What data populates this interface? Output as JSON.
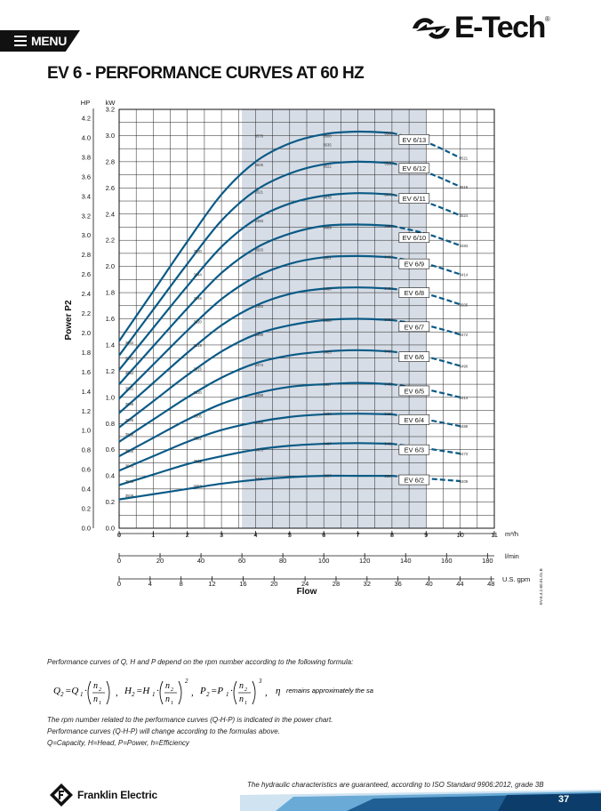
{
  "header": {
    "menu_label": "MENU",
    "brand_name": "E-Tech",
    "brand_reg": "®",
    "title": "EV 6 - PERFORMANCE CURVES AT 60 HZ"
  },
  "chart_data": {
    "type": "line",
    "title": "EV 6 - PERFORMANCE CURVES AT 60 HZ",
    "xlabel": "Flow",
    "ylabel": "Power P2",
    "left_unit_hp": "HP",
    "left_unit_kw": "kW",
    "grid": true,
    "x_axes": [
      {
        "unit": "m³/h",
        "ticks": [
          "0",
          "1",
          "2",
          "3",
          "4",
          "5",
          "6",
          "7",
          "8",
          "9",
          "10",
          "11"
        ],
        "range": [
          0,
          11
        ]
      },
      {
        "unit": "l/min",
        "ticks": [
          "0",
          "20",
          "40",
          "60",
          "80",
          "100",
          "120",
          "140",
          "160",
          "180"
        ],
        "range": [
          0,
          183.33
        ]
      },
      {
        "unit": "U.S. gpm",
        "ticks": [
          "0",
          "4",
          "8",
          "12",
          "16",
          "20",
          "24",
          "28",
          "32",
          "36",
          "40",
          "44",
          "48"
        ],
        "range": [
          0,
          48.43
        ]
      }
    ],
    "y_axes": [
      {
        "unit": "kW",
        "ticks": [
          "0.0",
          "0.2",
          "0.4",
          "0.6",
          "0.8",
          "1.0",
          "1.2",
          "1.4",
          "1.6",
          "1.8",
          "2.0",
          "2.2",
          "2.4",
          "2.6",
          "2.8",
          "3.0",
          "3.2"
        ],
        "range": [
          0,
          3.2
        ]
      },
      {
        "unit": "HP",
        "ticks": [
          "0.0",
          "0.2",
          "0.4",
          "0.6",
          "0.8",
          "1.0",
          "1.2",
          "1.4",
          "1.6",
          "1.8",
          "2.0",
          "2.2",
          "2.4",
          "2.6",
          "2.8",
          "3.0",
          "3.2",
          "3.4",
          "3.6",
          "3.8",
          "4.0",
          "4.2"
        ],
        "range": [
          0,
          4.2913
        ]
      }
    ],
    "shaded_range_m3h": [
      3.6,
      9.0
    ],
    "series": [
      {
        "name": "EV 6/2",
        "points": [
          [
            0,
            0.22
          ],
          [
            1,
            0.26
          ],
          [
            2,
            0.3
          ],
          [
            3,
            0.34
          ],
          [
            4,
            0.37
          ],
          [
            5,
            0.39
          ],
          [
            6,
            0.4
          ],
          [
            7,
            0.4
          ],
          [
            8,
            0.4
          ],
          [
            9,
            0.38
          ],
          [
            10,
            0.36
          ]
        ],
        "labels": [
          {
            "x": 0.3,
            "y": 0.25,
            "t": "3509"
          },
          {
            "x": 2.3,
            "y": 0.325,
            "t": "3464"
          },
          {
            "x": 4.1,
            "y": 0.38,
            "t": "3431"
          },
          {
            "x": 6.1,
            "y": 0.405,
            "t": "3397"
          },
          {
            "x": 7.9,
            "y": 0.4,
            "t": "3397"
          },
          {
            "x": 10.1,
            "y": 0.36,
            "t": "3409"
          }
        ]
      },
      {
        "name": "EV 6/3",
        "points": [
          [
            0,
            0.33
          ],
          [
            1,
            0.41
          ],
          [
            2,
            0.49
          ],
          [
            3,
            0.55
          ],
          [
            4,
            0.6
          ],
          [
            5,
            0.63
          ],
          [
            6,
            0.645
          ],
          [
            7,
            0.65
          ],
          [
            8,
            0.645
          ],
          [
            9,
            0.61
          ],
          [
            10,
            0.57
          ]
        ],
        "labels": [
          {
            "x": 0.3,
            "y": 0.36,
            "t": "3540"
          },
          {
            "x": 2.3,
            "y": 0.515,
            "t": "3521"
          },
          {
            "x": 4.1,
            "y": 0.6,
            "t": "3483"
          },
          {
            "x": 6.1,
            "y": 0.65,
            "t": "3467"
          },
          {
            "x": 7.9,
            "y": 0.65,
            "t": "3462"
          },
          {
            "x": 10.1,
            "y": 0.57,
            "t": "3473"
          }
        ]
      },
      {
        "name": "EV 6/4",
        "points": [
          [
            0,
            0.44
          ],
          [
            1,
            0.55
          ],
          [
            2,
            0.66
          ],
          [
            3,
            0.75
          ],
          [
            4,
            0.81
          ],
          [
            5,
            0.85
          ],
          [
            6,
            0.87
          ],
          [
            7,
            0.875
          ],
          [
            8,
            0.87
          ],
          [
            9,
            0.83
          ],
          [
            10,
            0.78
          ]
        ],
        "labels": [
          {
            "x": 0.3,
            "y": 0.48,
            "t": "3541"
          },
          {
            "x": 2.3,
            "y": 0.69,
            "t": "3522"
          },
          {
            "x": 4.1,
            "y": 0.81,
            "t": "3488"
          },
          {
            "x": 6.1,
            "y": 0.875,
            "t": "3434"
          },
          {
            "x": 7.9,
            "y": 0.875,
            "t": "3482"
          },
          {
            "x": 10.1,
            "y": 0.78,
            "t": "3489"
          }
        ]
      },
      {
        "name": "EV 6/5",
        "points": [
          [
            0,
            0.55
          ],
          [
            1,
            0.69
          ],
          [
            2,
            0.83
          ],
          [
            3,
            0.95
          ],
          [
            4,
            1.03
          ],
          [
            5,
            1.08
          ],
          [
            6,
            1.1
          ],
          [
            7,
            1.11
          ],
          [
            8,
            1.1
          ],
          [
            9,
            1.06
          ],
          [
            10,
            1.0
          ]
        ],
        "labels": [
          {
            "x": 0.3,
            "y": 0.59,
            "t": "3540"
          },
          {
            "x": 2.3,
            "y": 0.86,
            "t": "3505"
          },
          {
            "x": 4.1,
            "y": 1.02,
            "t": "3498"
          },
          {
            "x": 6.1,
            "y": 1.1,
            "t": "3457"
          },
          {
            "x": 7.9,
            "y": 1.105,
            "t": "3455"
          },
          {
            "x": 10.1,
            "y": 1.0,
            "t": "3414"
          }
        ]
      },
      {
        "name": "EV 6/6",
        "points": [
          [
            0,
            0.66
          ],
          [
            1,
            0.83
          ],
          [
            2,
            1.0
          ],
          [
            3,
            1.15
          ],
          [
            4,
            1.26
          ],
          [
            5,
            1.32
          ],
          [
            6,
            1.35
          ],
          [
            7,
            1.36
          ],
          [
            8,
            1.35
          ],
          [
            9,
            1.31
          ],
          [
            10,
            1.24
          ]
        ],
        "labels": [
          {
            "x": 0.3,
            "y": 0.72,
            "t": "3542"
          },
          {
            "x": 2.3,
            "y": 1.04,
            "t": "3520"
          },
          {
            "x": 4.1,
            "y": 1.25,
            "t": "3474"
          },
          {
            "x": 6.1,
            "y": 1.35,
            "t": "3485"
          },
          {
            "x": 7.9,
            "y": 1.355,
            "t": "3481"
          },
          {
            "x": 10.1,
            "y": 1.24,
            "t": "3490"
          }
        ]
      },
      {
        "name": "EV 6/7",
        "points": [
          [
            0,
            0.77
          ],
          [
            1,
            0.97
          ],
          [
            2,
            1.17
          ],
          [
            3,
            1.35
          ],
          [
            4,
            1.48
          ],
          [
            5,
            1.55
          ],
          [
            6,
            1.59
          ],
          [
            7,
            1.6
          ],
          [
            8,
            1.59
          ],
          [
            9,
            1.55
          ],
          [
            10,
            1.48
          ]
        ],
        "labels": [
          {
            "x": 0.3,
            "y": 0.83,
            "t": "3535"
          },
          {
            "x": 2.3,
            "y": 1.22,
            "t": "3515"
          },
          {
            "x": 4.1,
            "y": 1.48,
            "t": "3499"
          },
          {
            "x": 6.1,
            "y": 1.59,
            "t": "3480"
          },
          {
            "x": 7.9,
            "y": 1.595,
            "t": "3464"
          },
          {
            "x": 10.1,
            "y": 1.48,
            "t": "3472"
          }
        ]
      },
      {
        "name": "EV 6/8",
        "points": [
          [
            0,
            0.88
          ],
          [
            1,
            1.11
          ],
          [
            2,
            1.34
          ],
          [
            3,
            1.55
          ],
          [
            4,
            1.7
          ],
          [
            5,
            1.79
          ],
          [
            6,
            1.83
          ],
          [
            7,
            1.84
          ],
          [
            8,
            1.83
          ],
          [
            9,
            1.79
          ],
          [
            10,
            1.71
          ]
        ],
        "labels": [
          {
            "x": 0.3,
            "y": 0.95,
            "t": "3546"
          },
          {
            "x": 2.3,
            "y": 1.4,
            "t": "3519"
          },
          {
            "x": 4.1,
            "y": 1.7,
            "t": "3483"
          },
          {
            "x": 6.1,
            "y": 1.83,
            "t": "3460"
          },
          {
            "x": 7.9,
            "y": 1.835,
            "t": "3464"
          },
          {
            "x": 10.1,
            "y": 1.71,
            "t": "3505"
          }
        ]
      },
      {
        "name": "EV 6/9",
        "points": [
          [
            0,
            0.99
          ],
          [
            1,
            1.25
          ],
          [
            2,
            1.51
          ],
          [
            3,
            1.75
          ],
          [
            4,
            1.92
          ],
          [
            5,
            2.02
          ],
          [
            6,
            2.07
          ],
          [
            7,
            2.08
          ],
          [
            8,
            2.07
          ],
          [
            9,
            2.02
          ],
          [
            10,
            1.94
          ]
        ],
        "labels": [
          {
            "x": 0.3,
            "y": 1.07,
            "t": "3551"
          },
          {
            "x": 2.3,
            "y": 1.58,
            "t": "3520"
          },
          {
            "x": 4.1,
            "y": 1.91,
            "t": "3485"
          },
          {
            "x": 6.1,
            "y": 2.07,
            "t": "3501"
          },
          {
            "x": 7.9,
            "y": 2.075,
            "t": "3499"
          },
          {
            "x": 10.1,
            "y": 1.94,
            "t": "3414"
          }
        ]
      },
      {
        "name": "EV 6/10",
        "points": [
          [
            0,
            1.1
          ],
          [
            1,
            1.39
          ],
          [
            2,
            1.68
          ],
          [
            3,
            1.95
          ],
          [
            4,
            2.14
          ],
          [
            5,
            2.25
          ],
          [
            6,
            2.31
          ],
          [
            7,
            2.32
          ],
          [
            8,
            2.31
          ],
          [
            9,
            2.25
          ],
          [
            10,
            2.16
          ]
        ],
        "labels": [
          {
            "x": 0.3,
            "y": 1.19,
            "t": "3532"
          },
          {
            "x": 2.3,
            "y": 1.76,
            "t": "3348"
          },
          {
            "x": 4.1,
            "y": 2.13,
            "t": "3503"
          },
          {
            "x": 6.1,
            "y": 2.3,
            "t": "3489"
          },
          {
            "x": 7.9,
            "y": 2.31,
            "t": "3487"
          },
          {
            "x": 10.1,
            "y": 2.16,
            "t": "3483"
          }
        ]
      },
      {
        "name": "EV 6/11",
        "points": [
          [
            0,
            1.21
          ],
          [
            1,
            1.53
          ],
          [
            2,
            1.85
          ],
          [
            3,
            2.15
          ],
          [
            4,
            2.36
          ],
          [
            5,
            2.48
          ],
          [
            6,
            2.54
          ],
          [
            7,
            2.56
          ],
          [
            8,
            2.55
          ],
          [
            9,
            2.49
          ],
          [
            10,
            2.39
          ]
        ],
        "labels": [
          {
            "x": 0.3,
            "y": 1.3,
            "t": "3552"
          },
          {
            "x": 2.3,
            "y": 1.94,
            "t": "3544"
          },
          {
            "x": 4.1,
            "y": 2.35,
            "t": "3493"
          },
          {
            "x": 6.1,
            "y": 2.53,
            "t": "3478"
          },
          {
            "x": 7.9,
            "y": 2.55,
            "t": "3475"
          },
          {
            "x": 10.1,
            "y": 2.39,
            "t": "3524"
          }
        ]
      },
      {
        "name": "EV 6/12",
        "points": [
          [
            0,
            1.32
          ],
          [
            1,
            1.67
          ],
          [
            2,
            2.02
          ],
          [
            3,
            2.35
          ],
          [
            4,
            2.58
          ],
          [
            5,
            2.71
          ],
          [
            6,
            2.78
          ],
          [
            7,
            2.8
          ],
          [
            8,
            2.79
          ],
          [
            9,
            2.72
          ],
          [
            10,
            2.61
          ]
        ],
        "labels": [
          {
            "x": 0.3,
            "y": 1.42,
            "t": "3562"
          },
          {
            "x": 2.3,
            "y": 2.12,
            "t": "3530"
          },
          {
            "x": 4.1,
            "y": 2.57,
            "t": "3521"
          },
          {
            "x": 6.1,
            "y": 2.77,
            "t": "3522"
          },
          {
            "x": 7.9,
            "y": 2.79,
            "t": "3530"
          },
          {
            "x": 10.1,
            "y": 2.61,
            "t": "3518"
          }
        ]
      },
      {
        "name": "EV 6/13",
        "points": [
          [
            0,
            1.43
          ],
          [
            1,
            1.81
          ],
          [
            2,
            2.19
          ],
          [
            3,
            2.55
          ],
          [
            4,
            2.8
          ],
          [
            5,
            2.94
          ],
          [
            6,
            3.01
          ],
          [
            7,
            3.03
          ],
          [
            8,
            3.02
          ],
          [
            9,
            2.95
          ],
          [
            10,
            2.83
          ]
        ],
        "labels": [
          {
            "x": 4.1,
            "y": 2.78,
            "t": "3525"
          },
          {
            "x": 4.1,
            "y": 3.0,
            "t": "3578"
          },
          {
            "x": 6.1,
            "y": 2.93,
            "t": "3535"
          },
          {
            "x": 6.1,
            "y": 3.0,
            "t": "3508"
          },
          {
            "x": 7.9,
            "y": 3.02,
            "t": "3506"
          },
          {
            "x": 10.1,
            "y": 2.83,
            "t": "3521"
          }
        ]
      }
    ],
    "curve_labels": [
      {
        "name": "EV 6/13",
        "x": 8.65,
        "y": 2.97
      },
      {
        "name": "EV 6/12",
        "x": 8.65,
        "y": 2.75
      },
      {
        "name": "EV 6/11",
        "x": 8.65,
        "y": 2.52
      },
      {
        "name": "EV 6/10",
        "x": 8.65,
        "y": 2.22
      },
      {
        "name": "EV 6/9",
        "x": 8.65,
        "y": 2.02
      },
      {
        "name": "EV 6/8",
        "x": 8.65,
        "y": 1.8
      },
      {
        "name": "EV 6/7",
        "x": 8.65,
        "y": 1.54
      },
      {
        "name": "EV 6/6",
        "x": 8.65,
        "y": 1.31
      },
      {
        "name": "EV 6/5",
        "x": 8.65,
        "y": 1.05
      },
      {
        "name": "EV 6/4",
        "x": 8.65,
        "y": 0.83
      },
      {
        "name": "EV 6/3",
        "x": 8.65,
        "y": 0.6
      },
      {
        "name": "EV 6/2",
        "x": 8.65,
        "y": 0.37
      }
    ],
    "colors": {
      "curve": "#0a5a86",
      "shade": "#d7dde6",
      "grid": "#222222"
    }
  },
  "notes": {
    "intro": "Performance curves of Q, H and P depend on the rpm number according to the following formula:",
    "eta_text": "remains approximately the same.",
    "line1": "The rpm number related to the performance curves (Q-H-P) is indicated in the power chart.",
    "line2": "Performance curves (Q-H-P) will change according to the formulas above.",
    "line3": "Q=Capacity, H=Head, P=Power, h=Efficiency"
  },
  "footer": {
    "guarantee": "The hydraulic characteristics are guaranteed, according to ISO Standard 9906:2012, grade 3B",
    "company": "Franklin Electric",
    "page_number": "37",
    "side_code": "EV.6.4.2.60.01.01.B"
  }
}
